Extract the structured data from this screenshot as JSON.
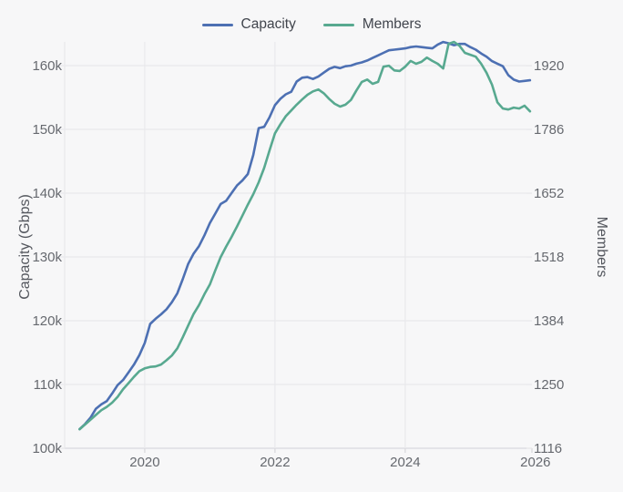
{
  "chart": {
    "legend": [
      {
        "label": "Capacity",
        "color": "#4d70b3"
      },
      {
        "label": "Members",
        "color": "#58a990"
      }
    ],
    "axes": {
      "left": {
        "title": "Capacity (Gbps)",
        "ticks": [
          {
            "label": "100k",
            "value": 100000
          },
          {
            "label": "110k",
            "value": 110000
          },
          {
            "label": "120k",
            "value": 120000
          },
          {
            "label": "130k",
            "value": 130000
          },
          {
            "label": "140k",
            "value": 140000
          },
          {
            "label": "150k",
            "value": 150000
          },
          {
            "label": "160k",
            "value": 160000
          }
        ]
      },
      "right": {
        "title": "Members",
        "ticks": [
          {
            "label": "1116",
            "value": 1116
          },
          {
            "label": "1250",
            "value": 1250
          },
          {
            "label": "1384",
            "value": 1384
          },
          {
            "label": "1518",
            "value": 1518
          },
          {
            "label": "1652",
            "value": 1652
          },
          {
            "label": "1786",
            "value": 1786
          },
          {
            "label": "1920",
            "value": 1920
          }
        ]
      },
      "x": {
        "ticks": [
          {
            "label": "2020",
            "value": 2020,
            "grid": true
          },
          {
            "label": "2022",
            "value": 2022,
            "grid": true
          },
          {
            "label": "2024",
            "value": 2024,
            "grid": true
          },
          {
            "label": "2026",
            "value": 2026,
            "grid": false
          }
        ]
      }
    },
    "theme": {
      "background": "#f7f7f8",
      "grid": "#e9e9ec",
      "axis_line": "#d9d9dd",
      "tick_text": "#66696f",
      "axis_title_text": "#54575e",
      "legend_text": "#41454d"
    }
  },
  "chart_data": {
    "type": "line",
    "title": "",
    "x_start_year": 2019,
    "x_step_months": 1,
    "xlim": [
      2018.77,
      2026.31
    ],
    "ylim_left": [
      100000,
      163714
    ],
    "ylim_right": [
      1116,
      1970
    ],
    "grid": true,
    "legend_position": "top-center",
    "series": [
      {
        "name": "Capacity",
        "axis": "left",
        "color": "#4d70b3",
        "unit": "Gbps",
        "values": [
          103000,
          103800,
          104800,
          106200,
          106900,
          107400,
          108600,
          109900,
          110700,
          111900,
          113100,
          114600,
          116500,
          119500,
          120300,
          121000,
          121800,
          122900,
          124300,
          126500,
          128900,
          130500,
          131700,
          133400,
          135300,
          136800,
          138300,
          138800,
          140000,
          141200,
          142000,
          143000,
          146000,
          150200,
          150400,
          151900,
          153800,
          154800,
          155500,
          155900,
          157500,
          158100,
          158200,
          157900,
          158300,
          158900,
          159500,
          159800,
          159600,
          159900,
          160000,
          160300,
          160500,
          160800,
          161200,
          161600,
          162000,
          162400,
          162500,
          162600,
          162700,
          162900,
          163000,
          162900,
          162800,
          162700,
          163300,
          163700,
          163500,
          163200,
          163400,
          163400,
          162900,
          162500,
          161900,
          161400,
          160700,
          160300,
          159900,
          158500,
          157800,
          157500,
          157600,
          157700
        ]
      },
      {
        "name": "Members",
        "axis": "right",
        "color": "#58a990",
        "unit": "members",
        "values": [
          1156,
          1166,
          1176,
          1186,
          1196,
          1203,
          1212,
          1224,
          1240,
          1253,
          1266,
          1278,
          1284,
          1287,
          1288,
          1292,
          1301,
          1311,
          1326,
          1349,
          1374,
          1398,
          1417,
          1440,
          1460,
          1490,
          1518,
          1540,
          1560,
          1582,
          1605,
          1628,
          1650,
          1675,
          1705,
          1742,
          1778,
          1797,
          1814,
          1826,
          1838,
          1849,
          1859,
          1866,
          1870,
          1862,
          1850,
          1840,
          1834,
          1838,
          1848,
          1868,
          1886,
          1891,
          1882,
          1886,
          1918,
          1920,
          1910,
          1909,
          1918,
          1930,
          1924,
          1928,
          1937,
          1930,
          1924,
          1914,
          1966,
          1970,
          1962,
          1947,
          1943,
          1939,
          1924,
          1905,
          1880,
          1843,
          1830,
          1828,
          1832,
          1830,
          1836,
          1824
        ]
      }
    ]
  }
}
